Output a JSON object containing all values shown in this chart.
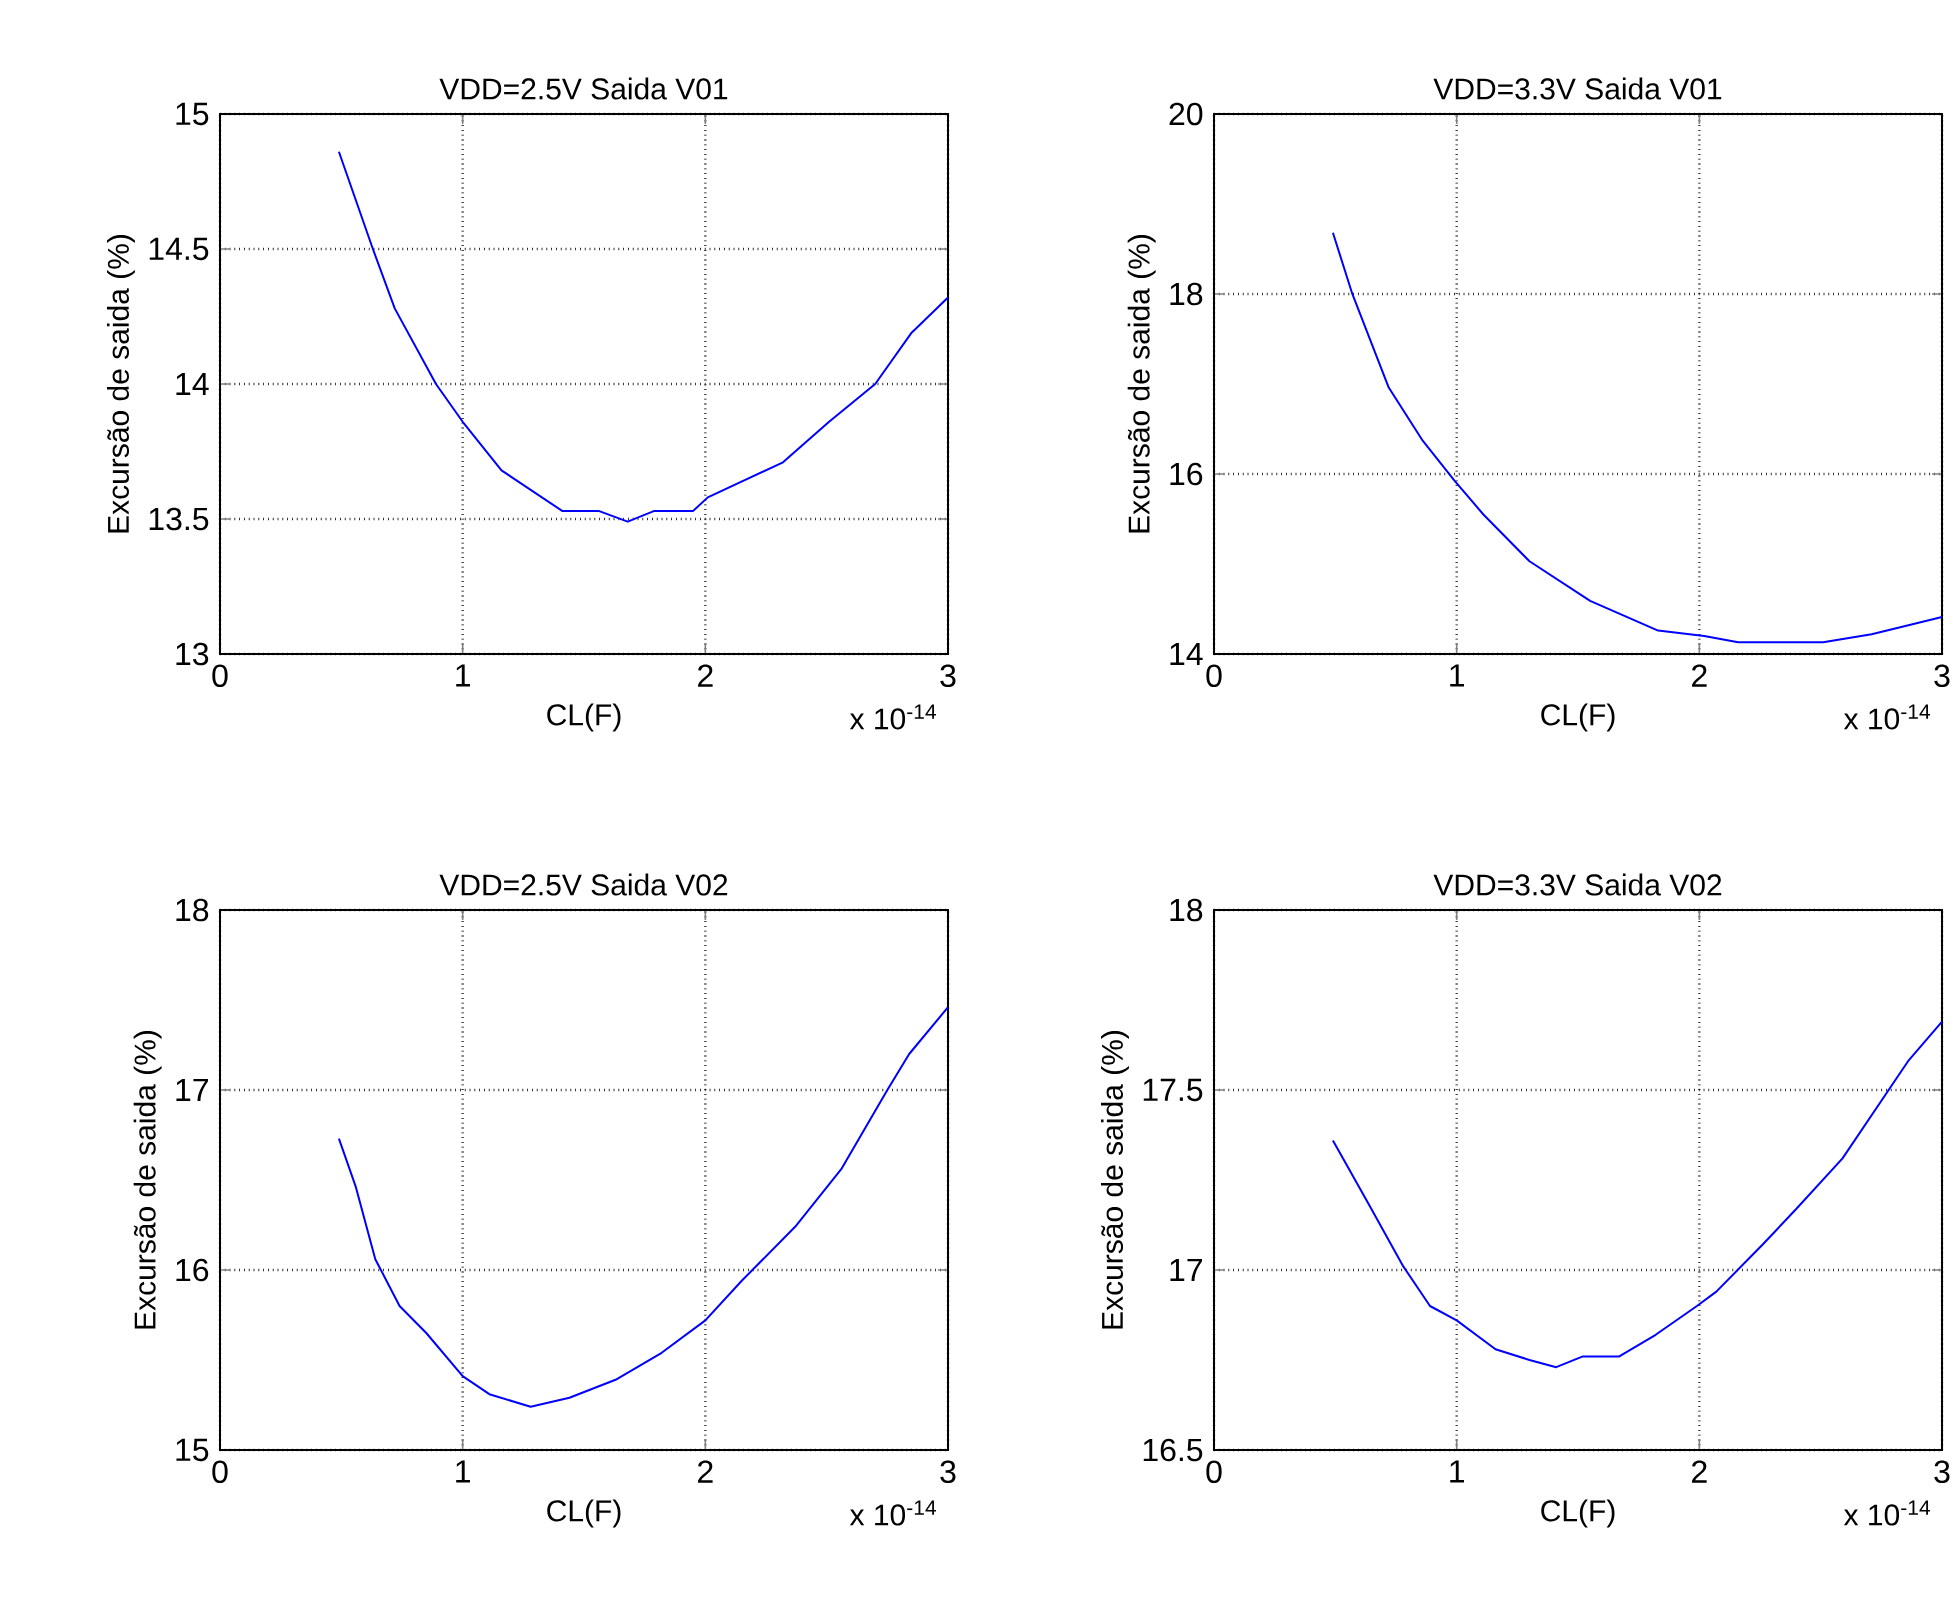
{
  "chart_data": [
    {
      "type": "line",
      "title": "VDD=2.5V Saida V01",
      "xlabel": "CL(F)",
      "ylabel": "Excursão de saida (%)",
      "annotations": [
        "x 10$^{-14}$"
      ],
      "xlim": [
        0,
        3
      ],
      "xticks": [
        0,
        1,
        2,
        3
      ],
      "ylim": [
        13,
        15
      ],
      "yticks": [
        13,
        13.5,
        14,
        14.5,
        15
      ],
      "grid": true,
      "series": [
        {
          "color": "#0000ff",
          "x": [
            0.49,
            0.63,
            0.72,
            0.89,
            1.0,
            1.16,
            1.41,
            1.56,
            1.68,
            1.79,
            1.95,
            2.01,
            2.32,
            2.51,
            2.7,
            2.85,
            3.0
          ],
          "values": [
            14.86,
            14.5,
            14.28,
            14.0,
            13.86,
            13.68,
            13.53,
            13.53,
            13.49,
            13.53,
            13.53,
            13.58,
            13.71,
            13.86,
            14.0,
            14.19,
            14.32
          ]
        }
      ]
    },
    {
      "type": "line",
      "title": "VDD=3.3V Saida V01",
      "xlabel": "CL(F)",
      "ylabel": "Excursão de saida (%)",
      "annotations": [
        "x 10$^{-14}$"
      ],
      "xlim": [
        0,
        3
      ],
      "xticks": [
        0,
        1,
        2,
        3
      ],
      "ylim": [
        14,
        20
      ],
      "yticks": [
        14,
        16,
        18,
        20
      ],
      "grid": true,
      "series": [
        {
          "color": "#0000ff",
          "x": [
            0.49,
            0.57,
            0.72,
            0.86,
            0.99,
            1.11,
            1.3,
            1.55,
            1.83,
            2.02,
            2.16,
            2.51,
            2.71,
            3.0
          ],
          "values": [
            18.68,
            18.0,
            16.96,
            16.37,
            15.93,
            15.55,
            15.03,
            14.59,
            14.26,
            14.2,
            14.13,
            14.13,
            14.22,
            14.41
          ]
        }
      ]
    },
    {
      "type": "line",
      "title": "VDD=2.5V Saida V02",
      "xlabel": "CL(F)",
      "ylabel": "Excursão de saida (%)",
      "annotations": [
        "x 10$^{-14}$"
      ],
      "xlim": [
        0,
        3
      ],
      "xticks": [
        0,
        1,
        2,
        3
      ],
      "ylim": [
        15,
        18
      ],
      "yticks": [
        15,
        16,
        17,
        18
      ],
      "grid": true,
      "series": [
        {
          "color": "#0000ff",
          "x": [
            0.49,
            0.56,
            0.64,
            0.74,
            0.85,
            1.0,
            1.11,
            1.28,
            1.44,
            1.63,
            1.82,
            2.0,
            2.15,
            2.37,
            2.56,
            2.75,
            2.84,
            3.0
          ],
          "values": [
            16.73,
            16.46,
            16.06,
            15.8,
            15.65,
            15.41,
            15.31,
            15.24,
            15.29,
            15.39,
            15.54,
            15.72,
            15.94,
            16.24,
            16.56,
            17.0,
            17.2,
            17.46
          ]
        }
      ]
    },
    {
      "type": "line",
      "title": "VDD=3.3V Saida V02",
      "xlabel": "CL(F)",
      "ylabel": "Excursão de saida (%)",
      "annotations": [
        "x 10$^{-14}$"
      ],
      "xlim": [
        0,
        3
      ],
      "xticks": [
        0,
        1,
        2,
        3
      ],
      "ylim": [
        16.5,
        18
      ],
      "yticks": [
        16.5,
        17,
        17.5,
        18
      ],
      "grid": true,
      "series": [
        {
          "color": "#0000ff",
          "x": [
            0.49,
            0.64,
            0.78,
            0.89,
            1.0,
            1.16,
            1.3,
            1.41,
            1.52,
            1.67,
            1.82,
            1.99,
            2.07,
            2.26,
            2.4,
            2.59,
            2.78,
            2.86,
            3.0
          ],
          "values": [
            17.36,
            17.18,
            17.01,
            16.9,
            16.86,
            16.78,
            16.75,
            16.73,
            16.76,
            16.76,
            16.82,
            16.9,
            16.94,
            17.07,
            17.17,
            17.31,
            17.5,
            17.58,
            17.69
          ]
        }
      ]
    }
  ]
}
